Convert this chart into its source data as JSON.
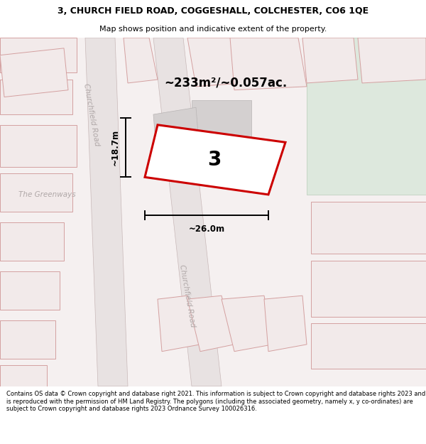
{
  "title_line1": "3, CHURCH FIELD ROAD, COGGESHALL, COLCHESTER, CO6 1QE",
  "title_line2": "Map shows position and indicative extent of the property.",
  "footer_text": "Contains OS data © Crown copyright and database right 2021. This information is subject to Crown copyright and database rights 2023 and is reproduced with the permission of HM Land Registry. The polygons (including the associated geometry, namely x, y co-ordinates) are subject to Crown copyright and database rights 2023 Ordnance Survey 100026316.",
  "area_label": "~233m²/~0.057ac.",
  "number_label": "3",
  "width_label": "~26.0m",
  "height_label": "~18.7m",
  "map_bg": "#f5f0f0",
  "road_fill": "#e8e2e2",
  "road_edge": "#c8b8b8",
  "plot_outline_color": "#cc0000",
  "property_fill": "#f2eaea",
  "property_edge": "#d4a0a0",
  "building_fill": "#d4d0d0",
  "building_edge": "#b8b4b4",
  "green_fill": "#dde8dd",
  "green_edge": "#b8ccb8",
  "road_label_color": "#b0a8a8",
  "dim_color": "#000000",
  "title_fontsize": 9.0,
  "subtitle_fontsize": 8.0,
  "footer_fontsize": 6.0,
  "area_fontsize": 12.0,
  "number_fontsize": 20.0,
  "dim_fontsize": 8.5,
  "road_label_fontsize": 7.5
}
